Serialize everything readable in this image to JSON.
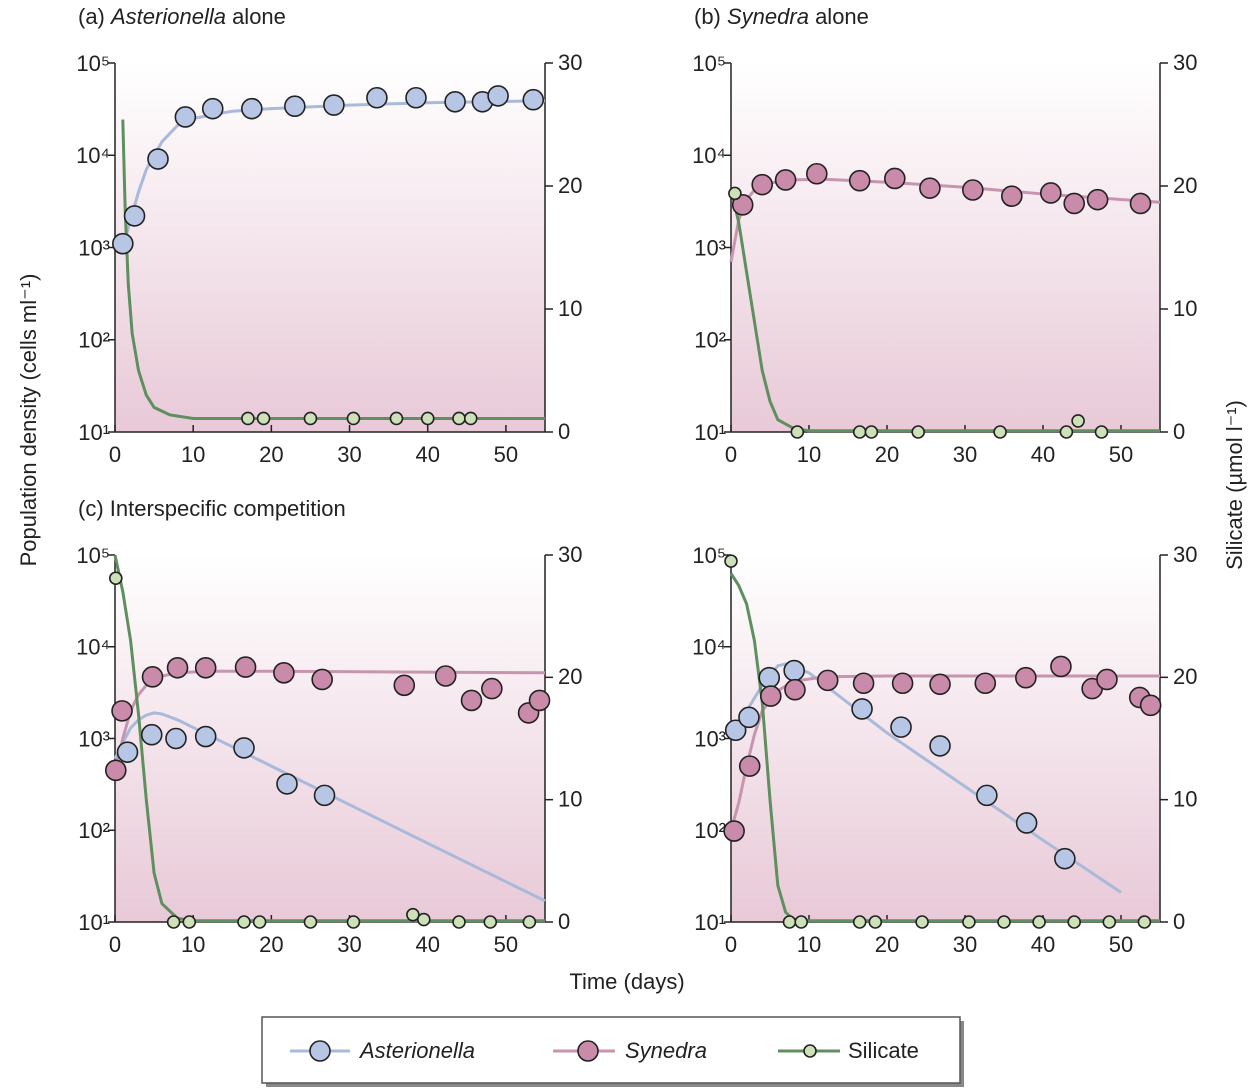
{
  "figure": {
    "ylabel": "Population density (cells ml⁻¹)",
    "y2label": "Silicate (µmol l⁻¹)",
    "xlabel": "Time (days)"
  },
  "chart_data": [
    {
      "type": "scatter",
      "title": "(a) Asterionella alone",
      "log_y": true,
      "xlim": [
        0,
        55
      ],
      "xticks": [
        0,
        10,
        20,
        30,
        40,
        50
      ],
      "ylim": [
        10,
        100000
      ],
      "yticks": [
        {
          "value": 10,
          "label": "10¹"
        },
        {
          "value": 100,
          "label": "10²"
        },
        {
          "value": 1000,
          "label": "10³"
        },
        {
          "value": 10000,
          "label": "10⁴"
        },
        {
          "value": 100000,
          "label": "10⁵"
        }
      ],
      "y2lim": [
        0,
        30
      ],
      "y2ticks": [
        0,
        10,
        20,
        30
      ],
      "series": [
        {
          "name": "Asterionella",
          "color": "#a9b9d9",
          "marker_color": "#b7c6e4",
          "x": [
            1,
            2.5,
            5.5,
            9,
            12.5,
            17.5,
            23,
            28,
            33.5,
            38.5,
            43.5,
            47,
            49,
            53.5
          ],
          "values": [
            1100,
            2200,
            9100,
            26000,
            32000,
            32000,
            34000,
            35000,
            42000,
            42000,
            38000,
            38000,
            44000,
            40000
          ],
          "fit_x": [
            1,
            2,
            3,
            4,
            6,
            8,
            10,
            15,
            20,
            30,
            40,
            55
          ],
          "fit_values": [
            1000,
            2000,
            4000,
            7000,
            14000,
            21000,
            25000,
            30000,
            32000,
            35000,
            37000,
            39000
          ]
        },
        {
          "name": "Silicate",
          "color": "#5f8f5f",
          "marker_color": "#cde0b8",
          "axis": "y2",
          "x": [
            17,
            19,
            25,
            30.5,
            36,
            40,
            44,
            45.5
          ],
          "values": [
            1.1,
            1.1,
            1.1,
            1.1,
            1.1,
            1.1,
            1.1,
            1.1
          ],
          "fit_x": [
            1,
            1.3,
            1.7,
            2.2,
            3,
            4,
            5,
            7,
            10,
            55
          ],
          "fit_values": [
            25.4,
            18,
            12,
            8,
            5,
            3,
            2,
            1.4,
            1.1,
            1.1
          ]
        }
      ]
    },
    {
      "type": "scatter",
      "title": "(b) Synedra alone",
      "log_y": true,
      "xlim": [
        0,
        55
      ],
      "xticks": [
        0,
        10,
        20,
        30,
        40,
        50
      ],
      "ylim": [
        10,
        100000
      ],
      "yticks": [
        {
          "value": 10,
          "label": "10¹"
        },
        {
          "value": 100,
          "label": "10²"
        },
        {
          "value": 1000,
          "label": "10³"
        },
        {
          "value": 10000,
          "label": "10⁴"
        },
        {
          "value": 100000,
          "label": "10⁵"
        }
      ],
      "y2lim": [
        0,
        30
      ],
      "y2ticks": [
        0,
        10,
        20,
        30
      ],
      "series": [
        {
          "name": "Synedra",
          "color": "#c795af",
          "marker_color": "#c98ba9",
          "x": [
            1.5,
            4,
            7,
            11,
            16.5,
            21,
            25.5,
            31,
            36,
            41,
            44,
            47,
            52.5
          ],
          "values": [
            2900,
            4800,
            5400,
            6300,
            5300,
            5600,
            4400,
            4200,
            3600,
            3900,
            3000,
            3300,
            3000
          ],
          "fit_x": [
            0,
            1,
            2,
            3,
            5,
            8,
            12,
            20,
            30,
            40,
            55
          ],
          "fit_values": [
            700,
            2000,
            3300,
            4200,
            5000,
            5400,
            5500,
            5100,
            4500,
            3800,
            3100
          ]
        },
        {
          "name": "Silicate",
          "color": "#5f8f5f",
          "marker_color": "#cde0b8",
          "axis": "y2",
          "x": [
            0.5,
            8.5,
            16.5,
            18,
            24,
            34.5,
            43,
            44.5,
            47.5
          ],
          "values": [
            19.4,
            0,
            0,
            0,
            0,
            0,
            0,
            0.9,
            0
          ],
          "fit_x": [
            0,
            1,
            2,
            3,
            4,
            5,
            6,
            8,
            10,
            55
          ],
          "fit_values": [
            19.8,
            17,
            13,
            9,
            5,
            2.5,
            1,
            0.3,
            0.1,
            0.1
          ]
        }
      ]
    },
    {
      "type": "scatter",
      "title": "(c) Interspecific competition",
      "log_y": true,
      "xlim": [
        0,
        55
      ],
      "xticks": [
        0,
        10,
        20,
        30,
        40,
        50
      ],
      "ylim": [
        10,
        100000
      ],
      "yticks": [
        {
          "value": 10,
          "label": "10¹"
        },
        {
          "value": 100,
          "label": "10²"
        },
        {
          "value": 1000,
          "label": "10³"
        },
        {
          "value": 10000,
          "label": "10⁴"
        },
        {
          "value": 100000,
          "label": "10⁵"
        }
      ],
      "y2lim": [
        0,
        30
      ],
      "y2ticks": [
        0,
        10,
        20,
        30
      ],
      "series": [
        {
          "name": "Asterionella",
          "color": "#a9b9d9",
          "marker_color": "#b7c6e4",
          "x": [
            1.6,
            4.7,
            7.8,
            11.6,
            16.5,
            22,
            26.8
          ],
          "values": [
            710,
            1100,
            1000,
            1050,
            790,
            320,
            240
          ],
          "fit_x": [
            0,
            1,
            2,
            3,
            4,
            5,
            6,
            8,
            20,
            30,
            40,
            55
          ],
          "fit_values": [
            600,
            900,
            1300,
            1600,
            1800,
            1900,
            1850,
            1600,
            500,
            190,
            72,
            17
          ]
        },
        {
          "name": "Synedra",
          "color": "#c795af",
          "marker_color": "#c98ba9",
          "x": [
            0.1,
            0.9,
            4.8,
            8,
            11.6,
            16.7,
            21.6,
            26.5,
            37,
            42.3,
            45.6,
            48.2,
            52.9,
            54.3
          ],
          "values": [
            450,
            2000,
            4700,
            5900,
            5900,
            6000,
            5200,
            4400,
            3800,
            4800,
            2600,
            3500,
            1900,
            2600
          ],
          "fit_x": [
            0,
            1,
            2,
            3,
            4,
            6,
            8,
            12,
            20,
            55
          ],
          "fit_values": [
            450,
            1000,
            2000,
            3000,
            3800,
            4800,
            5200,
            5400,
            5400,
            5200
          ]
        },
        {
          "name": "Silicate",
          "color": "#5f8f5f",
          "marker_color": "#cde0b8",
          "axis": "y2",
          "x": [
            0.1,
            7.5,
            9.5,
            16.5,
            18.5,
            25,
            30.5,
            38.1,
            39.5,
            44,
            48,
            53
          ],
          "values": [
            28.1,
            0,
            0,
            0,
            0,
            0,
            0,
            0.6,
            0.2,
            0,
            0,
            0
          ],
          "fit_x": [
            0,
            1,
            2,
            3,
            4,
            5,
            6,
            8,
            10,
            55
          ],
          "fit_values": [
            30,
            27,
            23,
            17,
            10,
            4,
            1.5,
            0.3,
            0.1,
            0.1
          ]
        }
      ]
    },
    {
      "type": "scatter",
      "log_y": true,
      "xlim": [
        0,
        55
      ],
      "xticks": [
        0,
        10,
        20,
        30,
        40,
        50
      ],
      "ylim": [
        10,
        100000
      ],
      "yticks": [
        {
          "value": 10,
          "label": "10¹"
        },
        {
          "value": 100,
          "label": "10²"
        },
        {
          "value": 1000,
          "label": "10³"
        },
        {
          "value": 10000,
          "label": "10⁴"
        },
        {
          "value": 100000,
          "label": "10⁵"
        }
      ],
      "y2lim": [
        0,
        30
      ],
      "y2ticks": [
        0,
        10,
        20,
        30
      ],
      "series": [
        {
          "name": "Asterionella",
          "color": "#a9b9d9",
          "marker_color": "#b7c6e4",
          "x": [
            0.6,
            2.3,
            4.9,
            8.1,
            16.8,
            21.8,
            26.8,
            32.8,
            37.9,
            42.8
          ],
          "values": [
            1230,
            1700,
            4600,
            5500,
            2100,
            1330,
            830,
            240,
            120,
            49
          ],
          "fit_x": [
            0,
            2,
            4,
            6,
            7,
            10,
            20,
            30,
            40,
            50
          ],
          "fit_values": [
            1200,
            2000,
            3800,
            6200,
            6500,
            5200,
            1150,
            300,
            78,
            21
          ]
        },
        {
          "name": "Synedra",
          "color": "#c795af",
          "marker_color": "#c98ba9",
          "x": [
            0.4,
            2.4,
            5.1,
            8.2,
            12.4,
            17,
            22,
            26.8,
            32.6,
            37.8,
            42.3,
            46.3,
            48.2,
            52.4,
            53.8
          ],
          "values": [
            98,
            500,
            2900,
            3400,
            4300,
            4000,
            4000,
            3900,
            4000,
            4600,
            6100,
            3500,
            4400,
            2800,
            2300
          ],
          "fit_x": [
            0,
            1,
            2,
            3,
            4,
            6,
            8,
            12,
            20,
            55
          ],
          "fit_values": [
            100,
            200,
            500,
            1100,
            2000,
            3300,
            4200,
            4700,
            4800,
            4800
          ]
        },
        {
          "name": "Silicate",
          "color": "#5f8f5f",
          "marker_color": "#cde0b8",
          "axis": "y2",
          "x": [
            0,
            7.5,
            9,
            16.5,
            18.5,
            24.5,
            30.5,
            35,
            39.5,
            44,
            48.5,
            53
          ],
          "values": [
            29.5,
            0,
            0,
            0,
            0,
            0,
            0,
            0,
            0,
            0,
            0,
            0
          ],
          "fit_x": [
            0,
            1,
            2,
            3,
            4,
            5,
            6,
            7,
            8,
            10,
            55
          ],
          "fit_values": [
            28.5,
            27.5,
            26,
            23,
            18,
            10,
            3,
            0.8,
            0.2,
            0.1,
            0.1
          ]
        }
      ]
    }
  ]
}
